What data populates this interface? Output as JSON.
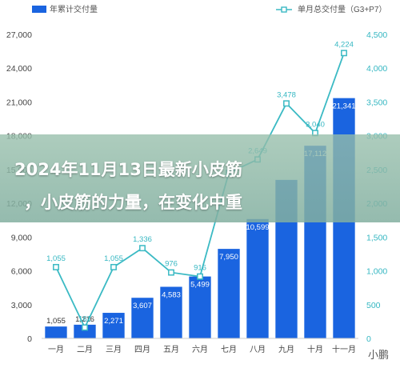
{
  "banner": {
    "line1": "2024年11月13日最新小皮筋",
    "line2": "，小皮筋的力量，在变化中重"
  },
  "watermark": "小鹏",
  "chart_data": {
    "type": "bar",
    "categories": [
      "一月",
      "二月",
      "三月",
      "四月",
      "五月",
      "六月",
      "七月",
      "八月",
      "九月",
      "十月",
      "十一月"
    ],
    "series": [
      {
        "name": "年累计交付量",
        "type": "bar",
        "axis": "left",
        "values": [
          1055,
          1216,
          2271,
          3607,
          4583,
          5499,
          7950,
          10599,
          14077,
          17112,
          21341
        ],
        "labels": [
          "1,055",
          "1,216",
          "2,271",
          "3,607",
          "4,583",
          "5,499",
          "7,950",
          "10,599",
          "",
          "17,112",
          "21,341"
        ]
      },
      {
        "name": "单月总交付量（G3+P7）",
        "type": "line",
        "axis": "right",
        "values": [
          1055,
          161,
          1055,
          1336,
          976,
          916,
          2451,
          2649,
          3478,
          3040,
          4224
        ],
        "labels": [
          "1,055",
          "161",
          "1,055",
          "1,336",
          "976",
          "916",
          "",
          "2,649",
          "3,478",
          "3,040",
          "4,224"
        ]
      }
    ],
    "left_axis": {
      "min": 0,
      "max": 27000,
      "ticks": [
        "0",
        "3,000",
        "6,000",
        "9,000",
        "12,000",
        "15,000",
        "18,000",
        "21,000",
        "24,000",
        "27,000"
      ]
    },
    "right_axis": {
      "min": 0,
      "max": 4500,
      "ticks": [
        "0",
        "500",
        "1,000",
        "1,500",
        "2,000",
        "2,500",
        "3,000",
        "3,500",
        "4,000",
        "4,500"
      ]
    },
    "colors": {
      "bar": "#1a64e0",
      "line": "#3bbac4",
      "bar_label_inside": "#ffffff",
      "bar_label_outside": "#333333"
    },
    "legend_position": "top",
    "grid": false
  }
}
